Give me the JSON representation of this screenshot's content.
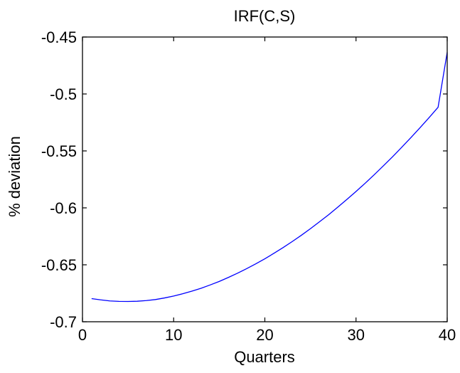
{
  "chart_data": {
    "type": "line",
    "title": "IRF(C,S)",
    "xlabel": "Quarters",
    "ylabel": "% deviation",
    "xlim": [
      0,
      40
    ],
    "ylim": [
      -0.7,
      -0.45
    ],
    "x_ticks": [
      0,
      10,
      20,
      30,
      40
    ],
    "x_tick_labels": [
      "0",
      "10",
      "20",
      "30",
      "40"
    ],
    "y_ticks": [
      -0.7,
      -0.65,
      -0.6,
      -0.55,
      -0.5,
      -0.45
    ],
    "y_tick_labels": [
      "-0.7",
      "-0.65",
      "-0.6",
      "-0.55",
      "-0.5",
      "-0.45"
    ],
    "grid": false,
    "line_color": "#0000ff",
    "series": [
      {
        "x": [
          1,
          2,
          3,
          4,
          5,
          6,
          7,
          8,
          9,
          10,
          11,
          12,
          13,
          14,
          15,
          16,
          17,
          18,
          19,
          20,
          21,
          22,
          23,
          24,
          25,
          26,
          27,
          28,
          29,
          30,
          31,
          32,
          33,
          34,
          35,
          36,
          37,
          38,
          39,
          40
        ],
        "values": [
          -0.6797,
          -0.6808,
          -0.6817,
          -0.6821,
          -0.6822,
          -0.682,
          -0.6814,
          -0.6805,
          -0.6791,
          -0.6774,
          -0.6754,
          -0.6731,
          -0.6706,
          -0.6677,
          -0.6646,
          -0.6611,
          -0.6574,
          -0.6534,
          -0.6492,
          -0.6447,
          -0.6399,
          -0.6349,
          -0.6296,
          -0.6241,
          -0.6183,
          -0.6122,
          -0.606,
          -0.5994,
          -0.5926,
          -0.5856,
          -0.5784,
          -0.5709,
          -0.5631,
          -0.5552,
          -0.5469,
          -0.5385,
          -0.5298,
          -0.5209,
          -0.5117,
          -0.4634
        ]
      }
    ]
  }
}
